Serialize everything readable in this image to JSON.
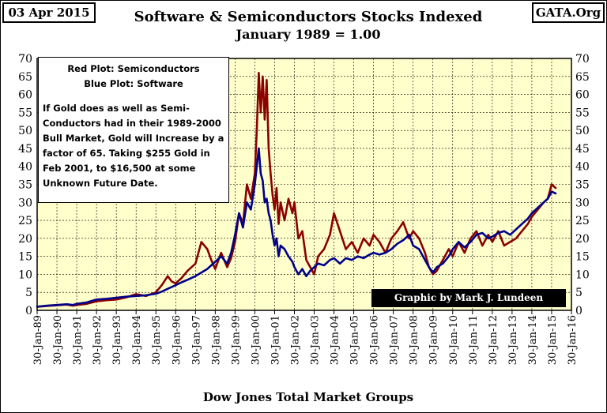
{
  "header": {
    "date": "03 Apr 2015",
    "site": "GATA.Org",
    "title": "Software & Semiconductors Stocks Indexed",
    "subtitle": "January 1989 = 1.00"
  },
  "annotation": {
    "line1": "Red Plot: Semiconductors",
    "line2": "Blue Plot: Software",
    "body": "If Gold does as well as Semi-Conductors had in their 1989-2000 Bull Market, Gold will Increase by a factor of 65.  Taking $255 Gold in Feb 2001, to $16,500 at some Unknown Future Date."
  },
  "credit": "Graphic by Mark J. Lundeen",
  "colors": {
    "plot_bg": "#ffffcc",
    "semiconductors": "#8b0000",
    "software": "#00008b",
    "grid": "#000000"
  },
  "chart_data": {
    "type": "line",
    "title": "Software & Semiconductors Stocks Indexed",
    "subtitle": "January 1989 = 1.00",
    "xlabel": "Dow Jones Total Market Groups",
    "ylabel": "",
    "ylim": [
      0,
      70
    ],
    "yticks": [
      0,
      5,
      10,
      15,
      20,
      25,
      30,
      35,
      40,
      45,
      50,
      55,
      60,
      65,
      70
    ],
    "ytick_labels": [
      "0",
      "5",
      "10",
      "15",
      "20",
      "25",
      "30",
      "35",
      "40",
      "45",
      "50",
      "55",
      "60",
      "65",
      "70"
    ],
    "xlim": [
      1989.0,
      2016.0
    ],
    "x_categories": [
      "30-Jan-89",
      "30-Jan-90",
      "30-Jan-91",
      "30-Jan-92",
      "30-Jan-93",
      "30-Jan-94",
      "30-Jan-95",
      "30-Jan-96",
      "30-Jan-97",
      "30-Jan-98",
      "30-Jan-99",
      "30-Jan-00",
      "30-Jan-01",
      "30-Jan-02",
      "30-Jan-03",
      "30-Jan-04",
      "30-Jan-05",
      "30-Jan-06",
      "30-Jan-07",
      "30-Jan-08",
      "30-Jan-09",
      "30-Jan-10",
      "30-Jan-11",
      "30-Jan-12",
      "30-Jan-13",
      "30-Jan-14",
      "30-Jan-15",
      "30-Jan-16"
    ],
    "grid": true,
    "series": [
      {
        "name": "Semiconductors",
        "color": "#8b0000",
        "x": [
          1989.0,
          1989.5,
          1990.0,
          1990.5,
          1990.8,
          1991.0,
          1991.5,
          1992.0,
          1992.5,
          1993.0,
          1993.5,
          1994.0,
          1994.5,
          1995.0,
          1995.3,
          1995.6,
          1995.8,
          1996.0,
          1996.3,
          1996.6,
          1997.0,
          1997.3,
          1997.6,
          1997.8,
          1998.0,
          1998.3,
          1998.6,
          1998.8,
          1999.0,
          1999.2,
          1999.4,
          1999.6,
          1999.8,
          2000.0,
          2000.1,
          2000.2,
          2000.3,
          2000.4,
          2000.5,
          2000.6,
          2000.7,
          2000.8,
          2000.9,
          2001.0,
          2001.1,
          2001.2,
          2001.3,
          2001.5,
          2001.7,
          2001.9,
          2002.0,
          2002.2,
          2002.4,
          2002.6,
          2002.8,
          2003.0,
          2003.2,
          2003.5,
          2003.8,
          2004.0,
          2004.3,
          2004.6,
          2004.9,
          2005.2,
          2005.5,
          2005.8,
          2006.0,
          2006.3,
          2006.6,
          2006.9,
          2007.2,
          2007.5,
          2007.8,
          2008.0,
          2008.3,
          2008.6,
          2008.8,
          2009.0,
          2009.2,
          2009.5,
          2009.8,
          2010.0,
          2010.3,
          2010.6,
          2010.9,
          2011.2,
          2011.5,
          2011.8,
          2012.0,
          2012.3,
          2012.6,
          2012.9,
          2013.2,
          2013.5,
          2013.8,
          2014.0,
          2014.3,
          2014.6,
          2014.8,
          2015.0,
          2015.2
        ],
        "values": [
          1.0,
          1.2,
          1.4,
          1.6,
          1.3,
          1.5,
          1.8,
          2.5,
          2.8,
          3.0,
          3.6,
          4.5,
          4.0,
          5.0,
          7.0,
          9.5,
          8.0,
          7.5,
          9.0,
          11.0,
          13.0,
          19.0,
          17.0,
          14.0,
          11.5,
          16.0,
          12.0,
          14.5,
          19.0,
          27.0,
          24.0,
          35.0,
          31.0,
          38.0,
          50.0,
          66.0,
          55.0,
          65.0,
          53.0,
          64.0,
          45.0,
          38.0,
          32.0,
          28.0,
          34.0,
          24.0,
          30.0,
          25.0,
          31.0,
          27.0,
          30.0,
          20.0,
          22.0,
          14.0,
          12.0,
          10.0,
          15.0,
          17.0,
          21.0,
          27.0,
          22.0,
          17.0,
          19.0,
          16.0,
          20.0,
          18.0,
          21.0,
          19.0,
          16.0,
          20.0,
          22.0,
          24.5,
          20.0,
          22.0,
          20.0,
          16.0,
          12.0,
          10.0,
          11.0,
          14.0,
          17.0,
          15.0,
          19.0,
          16.0,
          20.0,
          22.0,
          18.0,
          21.0,
          19.0,
          22.0,
          18.0,
          19.0,
          20.0,
          22.0,
          24.0,
          26.0,
          28.0,
          30.0,
          31.0,
          35.0,
          34.0
        ]
      },
      {
        "name": "Software",
        "color": "#00008b",
        "x": [
          1989.0,
          1989.5,
          1990.0,
          1990.5,
          1990.8,
          1991.0,
          1991.5,
          1992.0,
          1992.5,
          1993.0,
          1993.5,
          1994.0,
          1994.5,
          1995.0,
          1995.3,
          1995.6,
          1995.8,
          1996.0,
          1996.3,
          1996.6,
          1997.0,
          1997.3,
          1997.6,
          1997.8,
          1998.0,
          1998.3,
          1998.6,
          1998.8,
          1999.0,
          1999.2,
          1999.4,
          1999.6,
          1999.8,
          2000.0,
          2000.1,
          2000.2,
          2000.3,
          2000.4,
          2000.5,
          2000.6,
          2000.7,
          2000.8,
          2000.9,
          2001.0,
          2001.1,
          2001.2,
          2001.3,
          2001.5,
          2001.7,
          2001.9,
          2002.0,
          2002.2,
          2002.4,
          2002.6,
          2002.8,
          2003.0,
          2003.2,
          2003.5,
          2003.8,
          2004.0,
          2004.3,
          2004.6,
          2004.9,
          2005.2,
          2005.5,
          2005.8,
          2006.0,
          2006.3,
          2006.6,
          2006.9,
          2007.2,
          2007.5,
          2007.8,
          2008.0,
          2008.3,
          2008.6,
          2008.8,
          2009.0,
          2009.2,
          2009.5,
          2009.8,
          2010.0,
          2010.3,
          2010.6,
          2010.9,
          2011.2,
          2011.5,
          2011.8,
          2012.0,
          2012.3,
          2012.6,
          2012.9,
          2013.2,
          2013.5,
          2013.8,
          2014.0,
          2014.3,
          2014.6,
          2014.8,
          2015.0,
          2015.2
        ],
        "values": [
          1.0,
          1.3,
          1.5,
          1.7,
          1.5,
          1.8,
          2.2,
          3.0,
          3.2,
          3.5,
          3.8,
          4.0,
          4.2,
          4.6,
          5.2,
          6.0,
          6.5,
          7.0,
          7.8,
          8.5,
          9.5,
          10.5,
          11.5,
          12.5,
          13.5,
          15.0,
          13.0,
          16.0,
          21.0,
          27.0,
          23.0,
          30.0,
          28.0,
          35.0,
          40.0,
          45.0,
          38.0,
          36.0,
          30.0,
          31.0,
          27.0,
          25.0,
          21.0,
          18.0,
          20.0,
          15.0,
          18.0,
          17.0,
          15.0,
          13.5,
          12.0,
          10.0,
          11.5,
          9.5,
          11.0,
          12.0,
          13.0,
          12.5,
          14.0,
          14.5,
          13.0,
          14.5,
          14.0,
          15.0,
          14.5,
          15.5,
          16.0,
          15.5,
          16.0,
          17.0,
          18.5,
          19.5,
          21.0,
          18.0,
          17.0,
          14.0,
          12.0,
          10.5,
          12.0,
          13.0,
          15.0,
          17.0,
          19.0,
          17.5,
          19.0,
          21.0,
          21.5,
          20.0,
          20.5,
          21.5,
          22.0,
          21.0,
          22.5,
          24.0,
          25.5,
          27.0,
          28.5,
          30.0,
          31.0,
          33.0,
          32.5
        ]
      }
    ]
  }
}
